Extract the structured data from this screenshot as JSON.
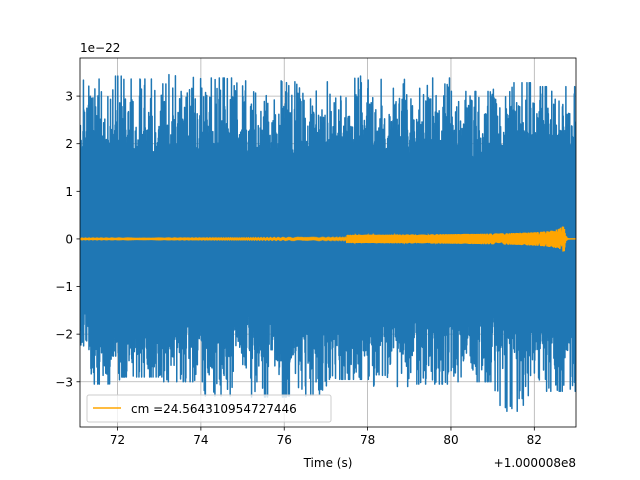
{
  "chart_data": {
    "type": "line",
    "xlabel": "Time (s)",
    "ylabel": "",
    "x_offset_label": "+1.000008e8",
    "y_scale_label": "1e−22",
    "x_tick_labels": [
      "72",
      "74",
      "76",
      "78",
      "80",
      "82"
    ],
    "x_ticks": [
      72,
      74,
      76,
      78,
      80,
      82
    ],
    "y_tick_labels": [
      "−3",
      "−2",
      "−1",
      "0",
      "1",
      "2",
      "3"
    ],
    "y_ticks": [
      -3,
      -2,
      -1,
      0,
      1,
      2,
      3
    ],
    "xlim": [
      71.1,
      83.0
    ],
    "ylim": [
      -3.95,
      3.8
    ],
    "grid": true,
    "legend_position": "lower-left",
    "series": [
      {
        "kind": "noise",
        "color": "#1f77b4",
        "x_range": [
          71.1,
          83.0
        ],
        "typical_amplitude": 1.9,
        "envelope_max": [
          3.42,
          3.36,
          3.45,
          3.38,
          3.32,
          3.3,
          3.42,
          3.35,
          3.38,
          3.1,
          3.28,
          3.2
        ],
        "envelope_min": [
          -3.05,
          -2.9,
          -3.0,
          -3.3,
          -3.32,
          -3.3,
          -2.95,
          -3.1,
          -3.05,
          -3.0,
          -3.62,
          -3.2
        ]
      },
      {
        "kind": "chirp",
        "name": "cm =24.564310954727446",
        "color": "#ffa500",
        "merger_time": 82.72,
        "merger_amplitude": 0.35
      }
    ]
  },
  "colors": {
    "grid": "#b0b0b0",
    "noise": "#1f77b4",
    "template": "#ffa500",
    "axes": "#000000"
  }
}
